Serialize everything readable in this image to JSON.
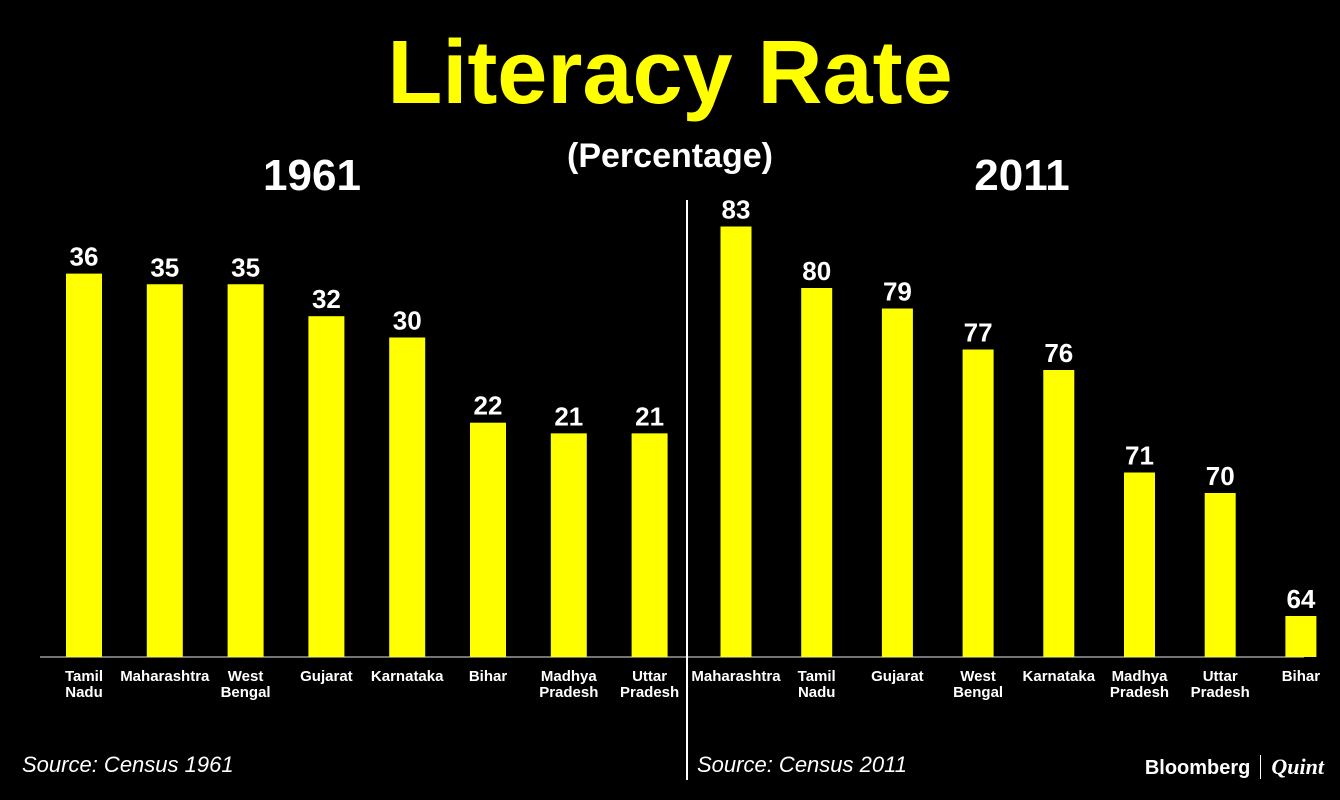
{
  "title": "Literacy Rate",
  "subtitle": "(Percentage)",
  "colors": {
    "bar": "#ffff00",
    "background": "#000000",
    "text": "#ffffff",
    "title": "#ffff00"
  },
  "chart_data": [
    {
      "type": "bar",
      "title": "1961",
      "categories": [
        [
          "Tamil",
          "Nadu"
        ],
        [
          "Maharashtra"
        ],
        [
          "West",
          "Bengal"
        ],
        [
          "Gujarat"
        ],
        [
          "Karnataka"
        ],
        [
          "Bihar"
        ],
        [
          "Madhya",
          "Pradesh"
        ],
        [
          "Uttar",
          "Pradesh"
        ]
      ],
      "values": [
        36,
        35,
        35,
        32,
        30,
        22,
        21,
        21
      ],
      "data_labels": [
        "36",
        "35",
        "35",
        "32",
        "30",
        "22",
        "21",
        "21"
      ],
      "source": "Source: Census 1961",
      "grid": false,
      "legend": "none"
    },
    {
      "type": "bar",
      "title": "2011",
      "categories": [
        [
          "Maharashtra"
        ],
        [
          "Tamil",
          "Nadu"
        ],
        [
          "Gujarat"
        ],
        [
          "West",
          "Bengal"
        ],
        [
          "Karnataka"
        ],
        [
          "Madhya",
          "Pradesh"
        ],
        [
          "Uttar",
          "Pradesh"
        ],
        [
          "Bihar"
        ]
      ],
      "values": [
        83,
        80,
        79,
        77,
        76,
        71,
        70,
        64
      ],
      "data_labels": [
        "83",
        "80",
        "79",
        "77",
        "76",
        "71",
        "70",
        "64"
      ],
      "source": "Source: Census 2011",
      "grid": false,
      "legend": "none"
    }
  ],
  "logo": {
    "brand": "Bloomberg",
    "partner": "Quint"
  }
}
